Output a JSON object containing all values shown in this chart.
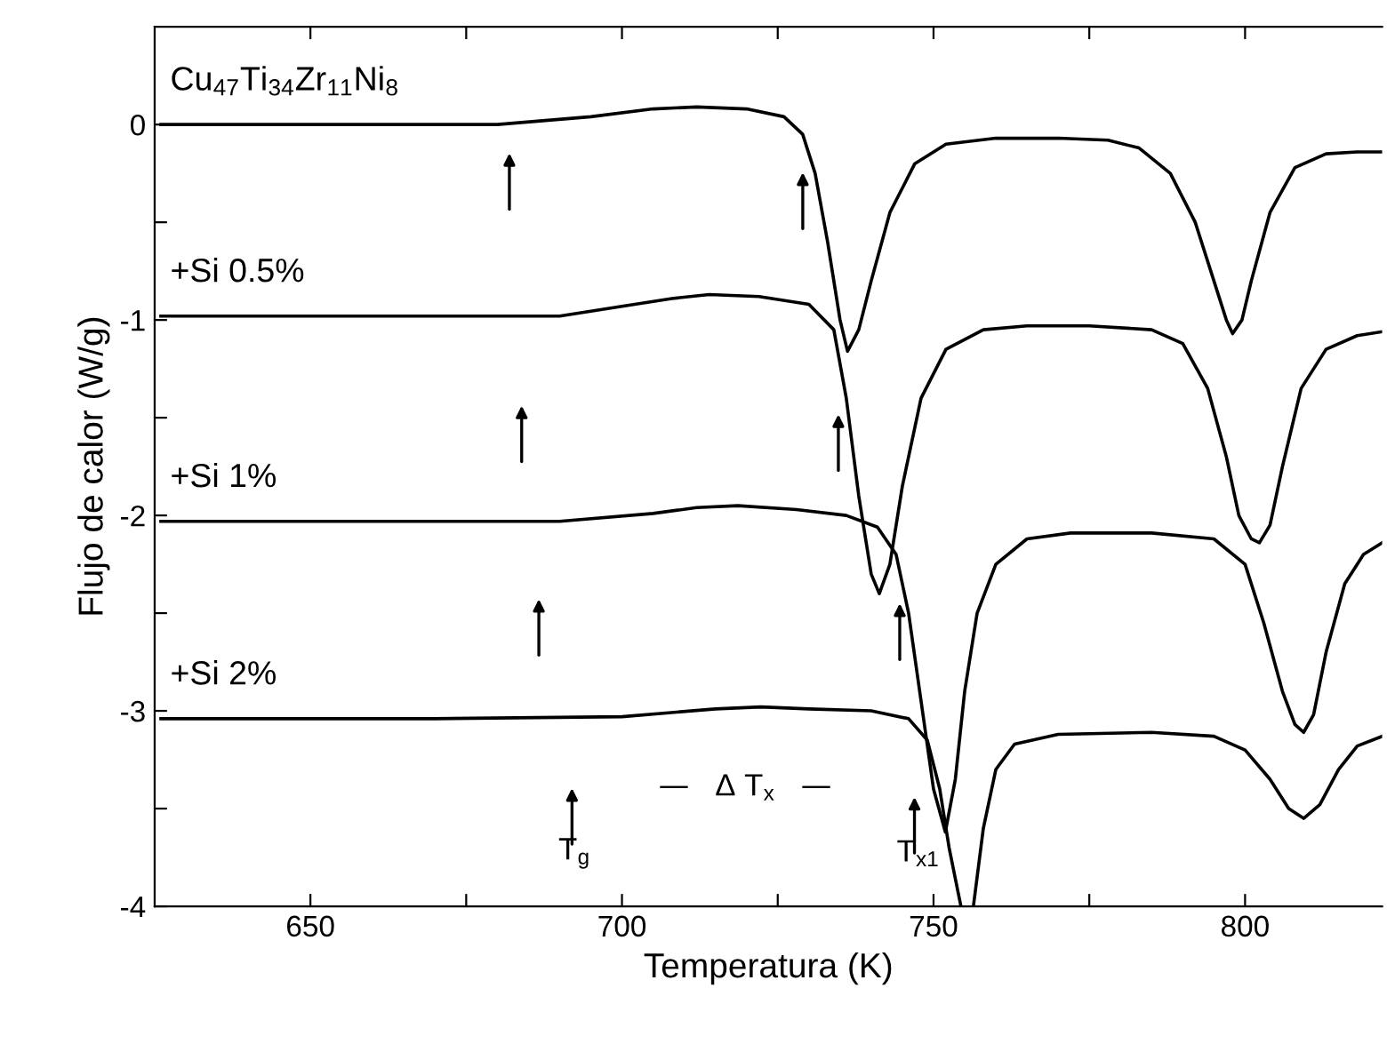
{
  "chart_data": {
    "type": "line",
    "xlabel": "Temperatura (K)",
    "ylabel": "Flujo de calor (W/g)",
    "xlim": [
      625,
      822
    ],
    "ylim": [
      -4,
      0.5
    ],
    "xticks": [
      650,
      {
        "value": 675,
        "label": null
      },
      700,
      {
        "value": 725,
        "label": null
      },
      750,
      {
        "value": 775,
        "label": null
      },
      800
    ],
    "yticks": [
      0,
      {
        "value": -0.5,
        "label": null
      },
      -1,
      {
        "value": -1.5,
        "label": null
      },
      -2,
      {
        "value": -2.5,
        "label": null
      },
      -3,
      {
        "value": -3.5,
        "label": null
      },
      -4
    ],
    "marker": "none",
    "line_style": "solid",
    "series": [
      {
        "name": "Cu$_{47}$Ti$_{34}$Zr$_{11}$Ni$_{8}$",
        "color": "#000000",
        "x": [
          626,
          650,
          680,
          695,
          705,
          712,
          720,
          726,
          729,
          731,
          733,
          735,
          736.2,
          738,
          740,
          743,
          747,
          752,
          760,
          770,
          778,
          783,
          788,
          792,
          795,
          797,
          798,
          799.5,
          801,
          804,
          808,
          813,
          818,
          822
        ],
        "values": [
          0,
          0,
          0,
          0.04,
          0.08,
          0.09,
          0.08,
          0.04,
          -0.05,
          -0.25,
          -0.6,
          -1.0,
          -1.16,
          -1.05,
          -0.8,
          -0.45,
          -0.2,
          -0.1,
          -0.07,
          -0.07,
          -0.08,
          -0.12,
          -0.25,
          -0.5,
          -0.8,
          -1.0,
          -1.07,
          -1.0,
          -0.8,
          -0.45,
          -0.22,
          -0.15,
          -0.14,
          -0.14
        ]
      },
      {
        "name": "+Si 0.5%",
        "color": "#000000",
        "x": [
          626,
          660,
          690,
          700,
          708,
          714,
          722,
          730,
          734,
          736,
          738,
          740,
          741.3,
          743,
          745,
          748,
          752,
          758,
          765,
          775,
          785,
          790,
          794,
          797,
          799,
          801,
          802.3,
          804,
          806,
          809,
          813,
          818,
          822
        ],
        "values": [
          -0.98,
          -0.98,
          -0.98,
          -0.93,
          -0.89,
          -0.87,
          -0.88,
          -0.92,
          -1.05,
          -1.4,
          -1.9,
          -2.3,
          -2.4,
          -2.25,
          -1.85,
          -1.4,
          -1.15,
          -1.05,
          -1.03,
          -1.03,
          -1.05,
          -1.12,
          -1.35,
          -1.7,
          -2.0,
          -2.12,
          -2.14,
          -2.05,
          -1.75,
          -1.35,
          -1.15,
          -1.08,
          -1.06
        ]
      },
      {
        "name": "+Si 1%",
        "color": "#000000",
        "x": [
          626,
          670,
          690,
          705,
          712,
          718.6,
          728,
          736,
          741,
          744,
          746,
          748,
          750,
          751.9,
          753.5,
          755,
          757,
          760,
          765,
          772,
          785,
          795,
          800,
          803,
          806,
          808,
          809.4,
          811,
          813,
          816,
          819,
          822
        ],
        "values": [
          -2.03,
          -2.03,
          -2.03,
          -1.99,
          -1.96,
          -1.95,
          -1.97,
          -2.0,
          -2.06,
          -2.2,
          -2.5,
          -2.95,
          -3.4,
          -3.62,
          -3.35,
          -2.9,
          -2.5,
          -2.25,
          -2.12,
          -2.09,
          -2.09,
          -2.12,
          -2.25,
          -2.55,
          -2.9,
          -3.07,
          -3.11,
          -3.02,
          -2.7,
          -2.35,
          -2.2,
          -2.14
        ]
      },
      {
        "name": "+Si 2%",
        "color": "#000000",
        "x": [
          626,
          670,
          700,
          715,
          722.3,
          730,
          740,
          746,
          749,
          751,
          752.5,
          754.4,
          755.4,
          756.4,
          758,
          760,
          763,
          770,
          785,
          795,
          800,
          804,
          807,
          809.4,
          812,
          815,
          818,
          822
        ],
        "values": [
          -3.04,
          -3.04,
          -3.03,
          -2.99,
          -2.98,
          -2.99,
          -3.0,
          -3.04,
          -3.15,
          -3.4,
          -3.7,
          -4,
          null,
          -4,
          -3.6,
          -3.3,
          -3.17,
          -3.12,
          -3.11,
          -3.13,
          -3.2,
          -3.35,
          -3.5,
          -3.55,
          -3.48,
          -3.3,
          -3.18,
          -3.13
        ]
      }
    ],
    "annotations": [
      "T$_{g}$",
      "T$_{x1}$",
      "—   Δ T$_{x}$   —"
    ]
  }
}
